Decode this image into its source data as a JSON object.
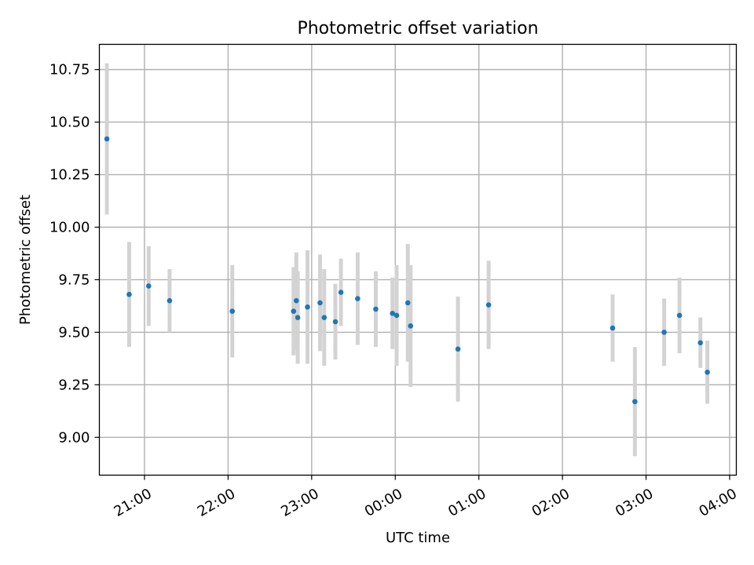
{
  "chart_data": {
    "type": "scatter",
    "title": "Photometric offset variation",
    "xlabel": "UTC time",
    "ylabel": "Photometric offset",
    "grid": true,
    "colors": {
      "point": "#1f77b4",
      "errorbar": "#d3d3d3",
      "grid": "#b0b0b0"
    },
    "x_tick_labels": [
      "21:00",
      "22:00",
      "23:00",
      "00:00",
      "01:00",
      "02:00",
      "03:00",
      "04:00"
    ],
    "y_ticks": [
      9.0,
      9.25,
      9.5,
      9.75,
      10.0,
      10.25,
      10.5,
      10.75
    ],
    "y_tick_labels": [
      "9.00",
      "9.25",
      "9.50",
      "9.75",
      "10.00",
      "10.25",
      "10.50",
      "10.75"
    ],
    "ylim": [
      8.82,
      10.87
    ],
    "xlim_hours": [
      20.46,
      28.08
    ],
    "series": [
      {
        "points": [
          {
            "x": "20:33",
            "y": 10.42,
            "err": 0.36
          },
          {
            "x": "20:49",
            "y": 9.68,
            "err": 0.25
          },
          {
            "x": "21:03",
            "y": 9.72,
            "err": 0.19
          },
          {
            "x": "21:18",
            "y": 9.65,
            "err": 0.15
          },
          {
            "x": "22:03",
            "y": 9.6,
            "err": 0.22
          },
          {
            "x": "22:47",
            "y": 9.6,
            "err": 0.21
          },
          {
            "x": "22:49",
            "y": 9.65,
            "err": 0.23
          },
          {
            "x": "22:50",
            "y": 9.57,
            "err": 0.22
          },
          {
            "x": "22:57",
            "y": 9.62,
            "err": 0.27
          },
          {
            "x": "23:06",
            "y": 9.64,
            "err": 0.23
          },
          {
            "x": "23:09",
            "y": 9.57,
            "err": 0.23
          },
          {
            "x": "23:17",
            "y": 9.55,
            "err": 0.18
          },
          {
            "x": "23:21",
            "y": 9.69,
            "err": 0.16
          },
          {
            "x": "23:33",
            "y": 9.66,
            "err": 0.22
          },
          {
            "x": "23:46",
            "y": 9.61,
            "err": 0.18
          },
          {
            "x": "23:58",
            "y": 9.59,
            "err": 0.17
          },
          {
            "x": "00:01",
            "y": 9.58,
            "err": 0.24
          },
          {
            "x": "00:09",
            "y": 9.64,
            "err": 0.28
          },
          {
            "x": "00:11",
            "y": 9.53,
            "err": 0.29
          },
          {
            "x": "00:45",
            "y": 9.42,
            "err": 0.25
          },
          {
            "x": "01:07",
            "y": 9.63,
            "err": 0.21
          },
          {
            "x": "02:36",
            "y": 9.52,
            "err": 0.16
          },
          {
            "x": "02:52",
            "y": 9.17,
            "err": 0.26
          },
          {
            "x": "03:13",
            "y": 9.5,
            "err": 0.16
          },
          {
            "x": "03:24",
            "y": 9.58,
            "err": 0.18
          },
          {
            "x": "03:39",
            "y": 9.45,
            "err": 0.12
          },
          {
            "x": "03:44",
            "y": 9.31,
            "err": 0.15
          }
        ]
      }
    ]
  }
}
